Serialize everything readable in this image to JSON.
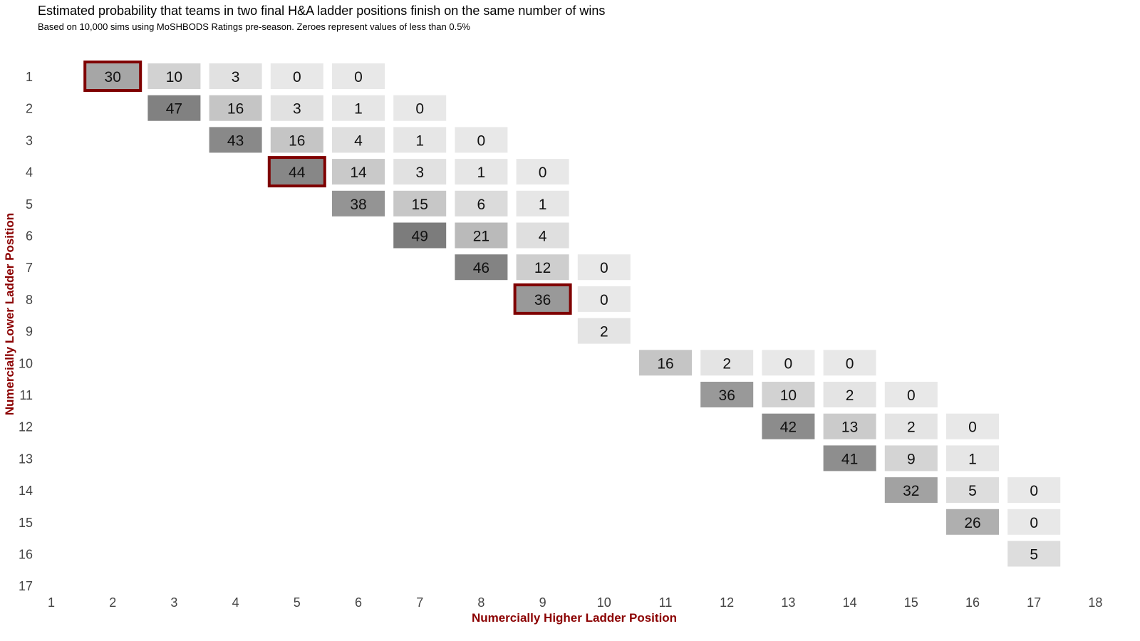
{
  "chart_data": {
    "type": "heatmap",
    "title": "Estimated probability that teams in two final H&A ladder positions finish on the same number of wins",
    "subtitle": "Based on 10,000 sims using MoSHBODS Ratings pre-season. Zeroes represent values of less than 0.5%",
    "xlabel": "Numercially Higher Ladder Position",
    "ylabel": "Numercially Lower Ladder Position",
    "x_ticks": [
      "1",
      "2",
      "3",
      "4",
      "5",
      "6",
      "7",
      "8",
      "9",
      "10",
      "11",
      "12",
      "13",
      "14",
      "15",
      "16",
      "17",
      "18"
    ],
    "y_ticks": [
      "1",
      "2",
      "3",
      "4",
      "5",
      "6",
      "7",
      "8",
      "9",
      "10",
      "11",
      "12",
      "13",
      "14",
      "15",
      "16",
      "17"
    ],
    "xlim": [
      1,
      18
    ],
    "ylim": [
      1,
      17
    ],
    "highlight_color": "#7f0000",
    "axis_title_color": "#8b0000",
    "cells": [
      {
        "x": 2,
        "y": 1,
        "value": 30,
        "highlight": true
      },
      {
        "x": 3,
        "y": 1,
        "value": 10
      },
      {
        "x": 4,
        "y": 1,
        "value": 3
      },
      {
        "x": 5,
        "y": 1,
        "value": 0
      },
      {
        "x": 6,
        "y": 1,
        "value": 0
      },
      {
        "x": 3,
        "y": 2,
        "value": 47
      },
      {
        "x": 4,
        "y": 2,
        "value": 16
      },
      {
        "x": 5,
        "y": 2,
        "value": 3
      },
      {
        "x": 6,
        "y": 2,
        "value": 1
      },
      {
        "x": 7,
        "y": 2,
        "value": 0
      },
      {
        "x": 4,
        "y": 3,
        "value": 43
      },
      {
        "x": 5,
        "y": 3,
        "value": 16
      },
      {
        "x": 6,
        "y": 3,
        "value": 4
      },
      {
        "x": 7,
        "y": 3,
        "value": 1
      },
      {
        "x": 8,
        "y": 3,
        "value": 0
      },
      {
        "x": 5,
        "y": 4,
        "value": 44,
        "highlight": true
      },
      {
        "x": 6,
        "y": 4,
        "value": 14
      },
      {
        "x": 7,
        "y": 4,
        "value": 3
      },
      {
        "x": 8,
        "y": 4,
        "value": 1
      },
      {
        "x": 9,
        "y": 4,
        "value": 0
      },
      {
        "x": 6,
        "y": 5,
        "value": 38
      },
      {
        "x": 7,
        "y": 5,
        "value": 15
      },
      {
        "x": 8,
        "y": 5,
        "value": 6
      },
      {
        "x": 9,
        "y": 5,
        "value": 1
      },
      {
        "x": 7,
        "y": 6,
        "value": 49
      },
      {
        "x": 8,
        "y": 6,
        "value": 21
      },
      {
        "x": 9,
        "y": 6,
        "value": 4
      },
      {
        "x": 8,
        "y": 7,
        "value": 46
      },
      {
        "x": 9,
        "y": 7,
        "value": 12
      },
      {
        "x": 10,
        "y": 7,
        "value": 0
      },
      {
        "x": 9,
        "y": 8,
        "value": 36,
        "highlight": true
      },
      {
        "x": 10,
        "y": 8,
        "value": 0
      },
      {
        "x": 10,
        "y": 9,
        "value": 2
      },
      {
        "x": 11,
        "y": 10,
        "value": 16
      },
      {
        "x": 12,
        "y": 10,
        "value": 2
      },
      {
        "x": 13,
        "y": 10,
        "value": 0
      },
      {
        "x": 14,
        "y": 10,
        "value": 0
      },
      {
        "x": 12,
        "y": 11,
        "value": 36
      },
      {
        "x": 13,
        "y": 11,
        "value": 10
      },
      {
        "x": 14,
        "y": 11,
        "value": 2
      },
      {
        "x": 15,
        "y": 11,
        "value": 0
      },
      {
        "x": 13,
        "y": 12,
        "value": 42
      },
      {
        "x": 14,
        "y": 12,
        "value": 13
      },
      {
        "x": 15,
        "y": 12,
        "value": 2
      },
      {
        "x": 16,
        "y": 12,
        "value": 0
      },
      {
        "x": 14,
        "y": 13,
        "value": 41
      },
      {
        "x": 15,
        "y": 13,
        "value": 9
      },
      {
        "x": 16,
        "y": 13,
        "value": 1
      },
      {
        "x": 15,
        "y": 14,
        "value": 32
      },
      {
        "x": 16,
        "y": 14,
        "value": 5
      },
      {
        "x": 17,
        "y": 14,
        "value": 0
      },
      {
        "x": 16,
        "y": 15,
        "value": 26
      },
      {
        "x": 17,
        "y": 15,
        "value": 0
      },
      {
        "x": 17,
        "y": 16,
        "value": 5
      }
    ]
  }
}
